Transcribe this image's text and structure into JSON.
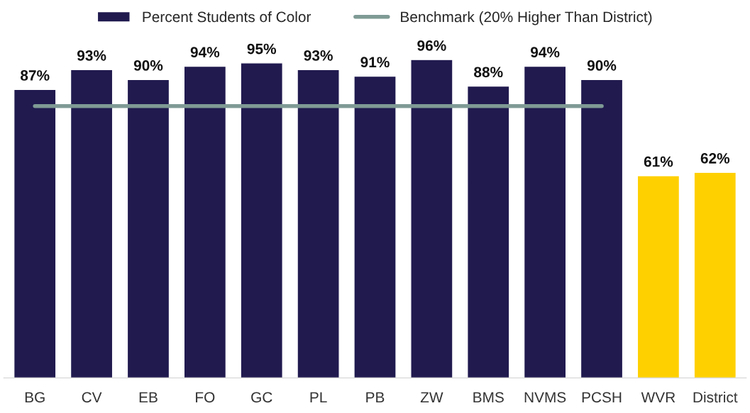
{
  "chart_data": {
    "type": "bar",
    "categories": [
      "BG",
      "CV",
      "EB",
      "FO",
      "GC",
      "PL",
      "PB",
      "ZW",
      "BMS",
      "NVMS",
      "PCSH",
      "WVR",
      "District"
    ],
    "series": [
      {
        "name": "Percent Students of Color",
        "color": "#201a4f",
        "colors": [
          "#201a4f",
          "#201a4f",
          "#201a4f",
          "#201a4f",
          "#201a4f",
          "#201a4f",
          "#201a4f",
          "#201a4f",
          "#201a4f",
          "#201a4f",
          "#201a4f",
          "#ffd000",
          "#ffd000"
        ],
        "values": [
          87,
          93,
          90,
          94,
          95,
          93,
          91,
          96,
          88,
          94,
          90,
          61,
          62
        ],
        "value_labels": [
          "87%",
          "93%",
          "90%",
          "94%",
          "95%",
          "93%",
          "91%",
          "96%",
          "88%",
          "94%",
          "90%",
          "61%",
          "62%"
        ]
      },
      {
        "name": "Benchmark (20% Higher Than District)",
        "type": "line",
        "color": "#7f9a94",
        "values": [
          82,
          82,
          82,
          82,
          82,
          82,
          82,
          82,
          82,
          82,
          82,
          null,
          null
        ]
      }
    ],
    "legend": "top",
    "grid": false
  }
}
